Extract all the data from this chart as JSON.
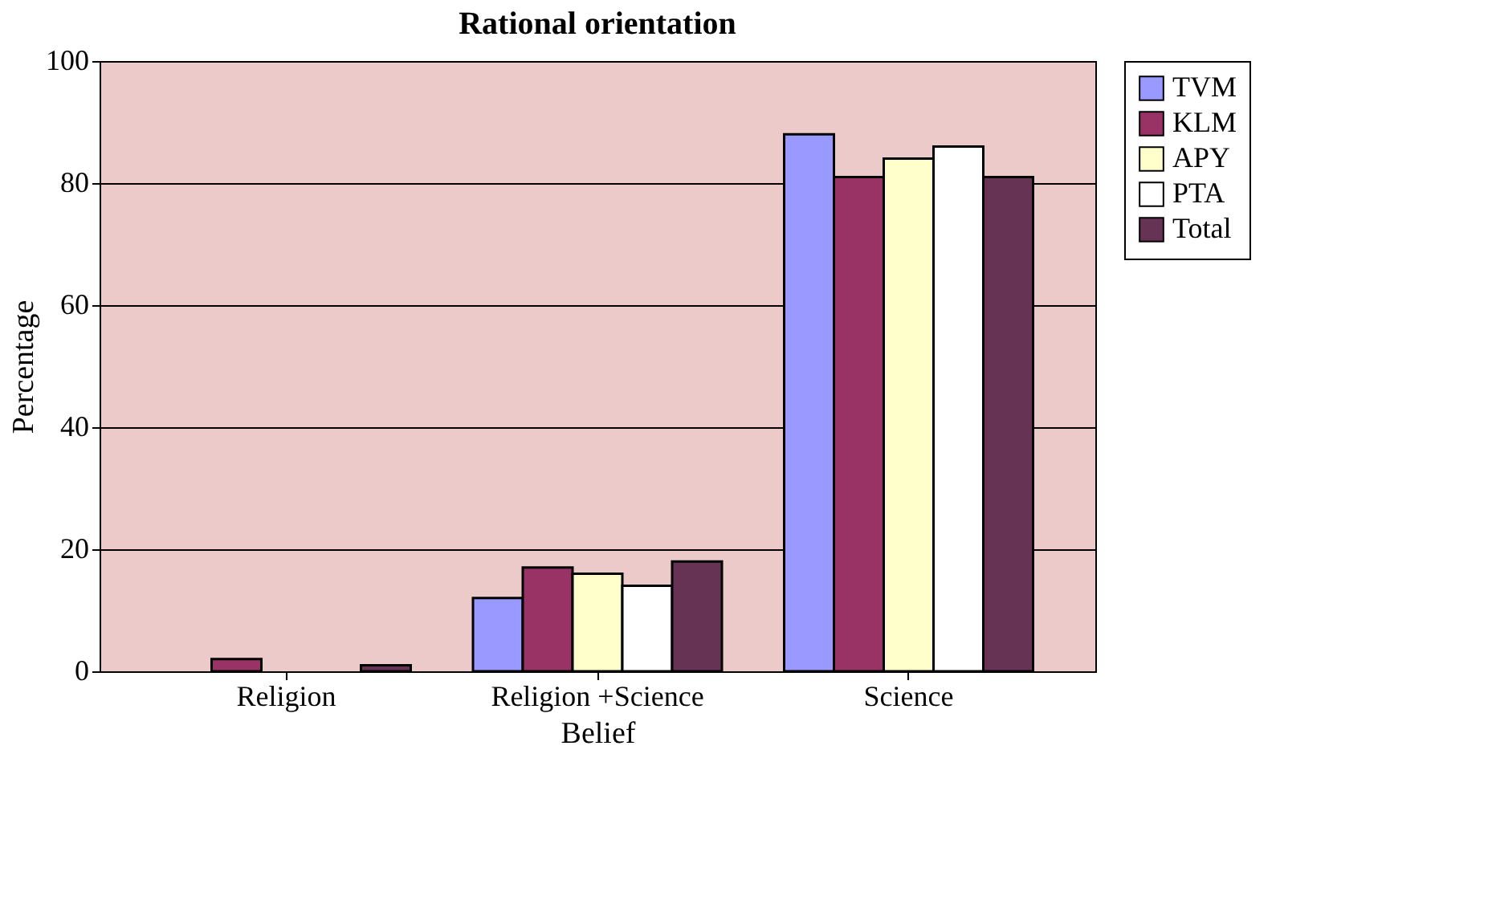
{
  "chart_data": {
    "type": "bar",
    "title": "Rational orientation",
    "xlabel": "Belief",
    "ylabel": "Percentage",
    "categories": [
      "Religion",
      "Religion +Science",
      "Science"
    ],
    "series": [
      {
        "name": "TVM",
        "color": "#9999ff",
        "values": [
          null,
          12,
          88
        ]
      },
      {
        "name": "KLM",
        "color": "#993366",
        "values": [
          2,
          17,
          81
        ]
      },
      {
        "name": "APY",
        "color": "#ffffcc",
        "values": [
          null,
          16,
          84
        ]
      },
      {
        "name": "PTA",
        "color": "#ffffff",
        "values": [
          null,
          14,
          86
        ]
      },
      {
        "name": "Total",
        "color": "#663355",
        "values": [
          1,
          18,
          81
        ]
      }
    ],
    "ylim": [
      0,
      100
    ],
    "yticks": [
      0,
      20,
      40,
      60,
      80,
      100
    ],
    "grid": "y",
    "legend": "right"
  }
}
